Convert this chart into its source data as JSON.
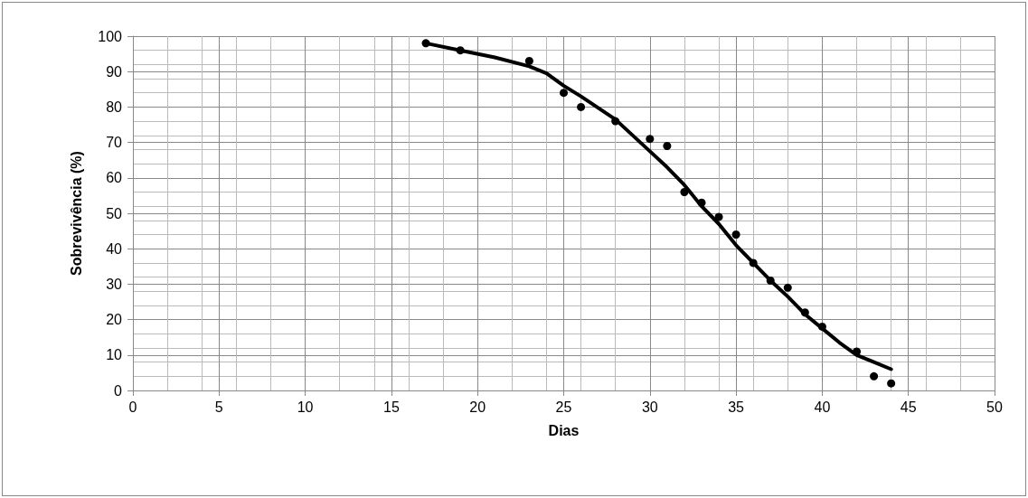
{
  "chart_data": {
    "type": "scatter",
    "xlabel": "Dias",
    "ylabel": "Sobrevivência (%)",
    "series": [
      {
        "color": "#000000",
        "marker": "circle",
        "x": [
          17,
          19,
          23,
          25,
          26,
          28,
          30,
          31,
          32,
          33,
          34,
          35,
          36,
          37,
          38,
          39,
          40,
          42,
          43,
          44
        ],
        "values": [
          98,
          96,
          93,
          84,
          80,
          76,
          71,
          69,
          56,
          53,
          49,
          44,
          36,
          31,
          29,
          22,
          18,
          11,
          4,
          2
        ]
      },
      {
        "type": "line",
        "color": "#000000",
        "marker": "none",
        "line_style": "solid",
        "x": [
          17,
          19,
          21,
          23,
          24,
          25,
          26,
          28,
          30,
          31,
          32,
          33,
          34,
          35,
          36,
          37,
          38,
          39,
          40,
          41,
          42,
          43,
          44
        ],
        "values": [
          98,
          96,
          94,
          91.5,
          89.5,
          86,
          83,
          76.5,
          67.5,
          63,
          58,
          52,
          47,
          41,
          36,
          31,
          26.5,
          21.5,
          17.5,
          13.5,
          10,
          8,
          6
        ]
      }
    ],
    "xlim": [
      0,
      50
    ],
    "xticks": [
      0,
      5,
      10,
      15,
      20,
      25,
      30,
      35,
      40,
      45,
      50
    ],
    "ylim": [
      0,
      100
    ],
    "yticks": [
      0,
      10,
      20,
      30,
      40,
      50,
      60,
      70,
      80,
      90,
      100
    ],
    "grid": true
  }
}
